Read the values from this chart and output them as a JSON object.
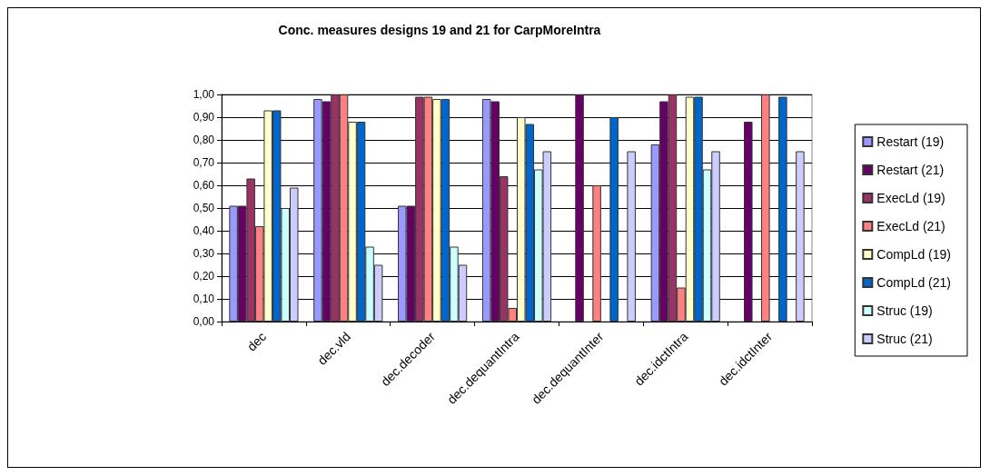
{
  "chart_data": {
    "type": "bar",
    "title": "Conc. measures designs 19 and 21 for CarpMoreIntra",
    "categories": [
      "dec",
      "dec.vld",
      "dec.decoder",
      "dec.dequantIntra",
      "dec.dequantInter",
      "dec.idctIntra",
      "dec.idctInter"
    ],
    "series": [
      {
        "name": "Restart (19)",
        "color": "#9999ff",
        "values": [
          0.51,
          0.98,
          0.51,
          0.98,
          null,
          0.78,
          null
        ]
      },
      {
        "name": "Restart (21)",
        "color": "#660066",
        "values": [
          0.51,
          0.97,
          0.51,
          0.97,
          1.0,
          0.97,
          0.88
        ]
      },
      {
        "name": "ExecLd (19)",
        "color": "#993366",
        "values": [
          0.63,
          1.0,
          0.99,
          0.64,
          null,
          1.0,
          null
        ]
      },
      {
        "name": "ExecLd (21)",
        "color": "#ff8080",
        "values": [
          0.42,
          1.0,
          0.99,
          0.06,
          0.6,
          0.15,
          1.0
        ]
      },
      {
        "name": "CompLd (19)",
        "color": "#ffffcc",
        "values": [
          0.93,
          0.88,
          0.98,
          0.9,
          null,
          0.99,
          null
        ]
      },
      {
        "name": "CompLd (21)",
        "color": "#0066cc",
        "values": [
          0.93,
          0.88,
          0.98,
          0.87,
          0.9,
          0.99,
          0.99
        ]
      },
      {
        "name": "Struc (19)",
        "color": "#ccffff",
        "values": [
          0.5,
          0.33,
          0.33,
          0.67,
          null,
          0.67,
          null
        ]
      },
      {
        "name": "Struc (21)",
        "color": "#ccccff",
        "values": [
          0.59,
          0.25,
          0.25,
          0.75,
          0.75,
          0.75,
          0.75
        ]
      }
    ],
    "ylim": [
      0,
      1
    ],
    "yticks": [
      {
        "value": 0,
        "label": "0,00"
      },
      {
        "value": 0.1,
        "label": "0,10"
      },
      {
        "value": 0.2,
        "label": "0,20"
      },
      {
        "value": 0.3,
        "label": "0,30"
      },
      {
        "value": 0.4,
        "label": "0,40"
      },
      {
        "value": 0.5,
        "label": "0,50"
      },
      {
        "value": 0.6,
        "label": "0,60"
      },
      {
        "value": 0.7,
        "label": "0,70"
      },
      {
        "value": 0.8,
        "label": "0,80"
      },
      {
        "value": 0.9,
        "label": "0,90"
      },
      {
        "value": 1,
        "label": "1,00"
      }
    ],
    "grid": "y",
    "legend": "right"
  }
}
